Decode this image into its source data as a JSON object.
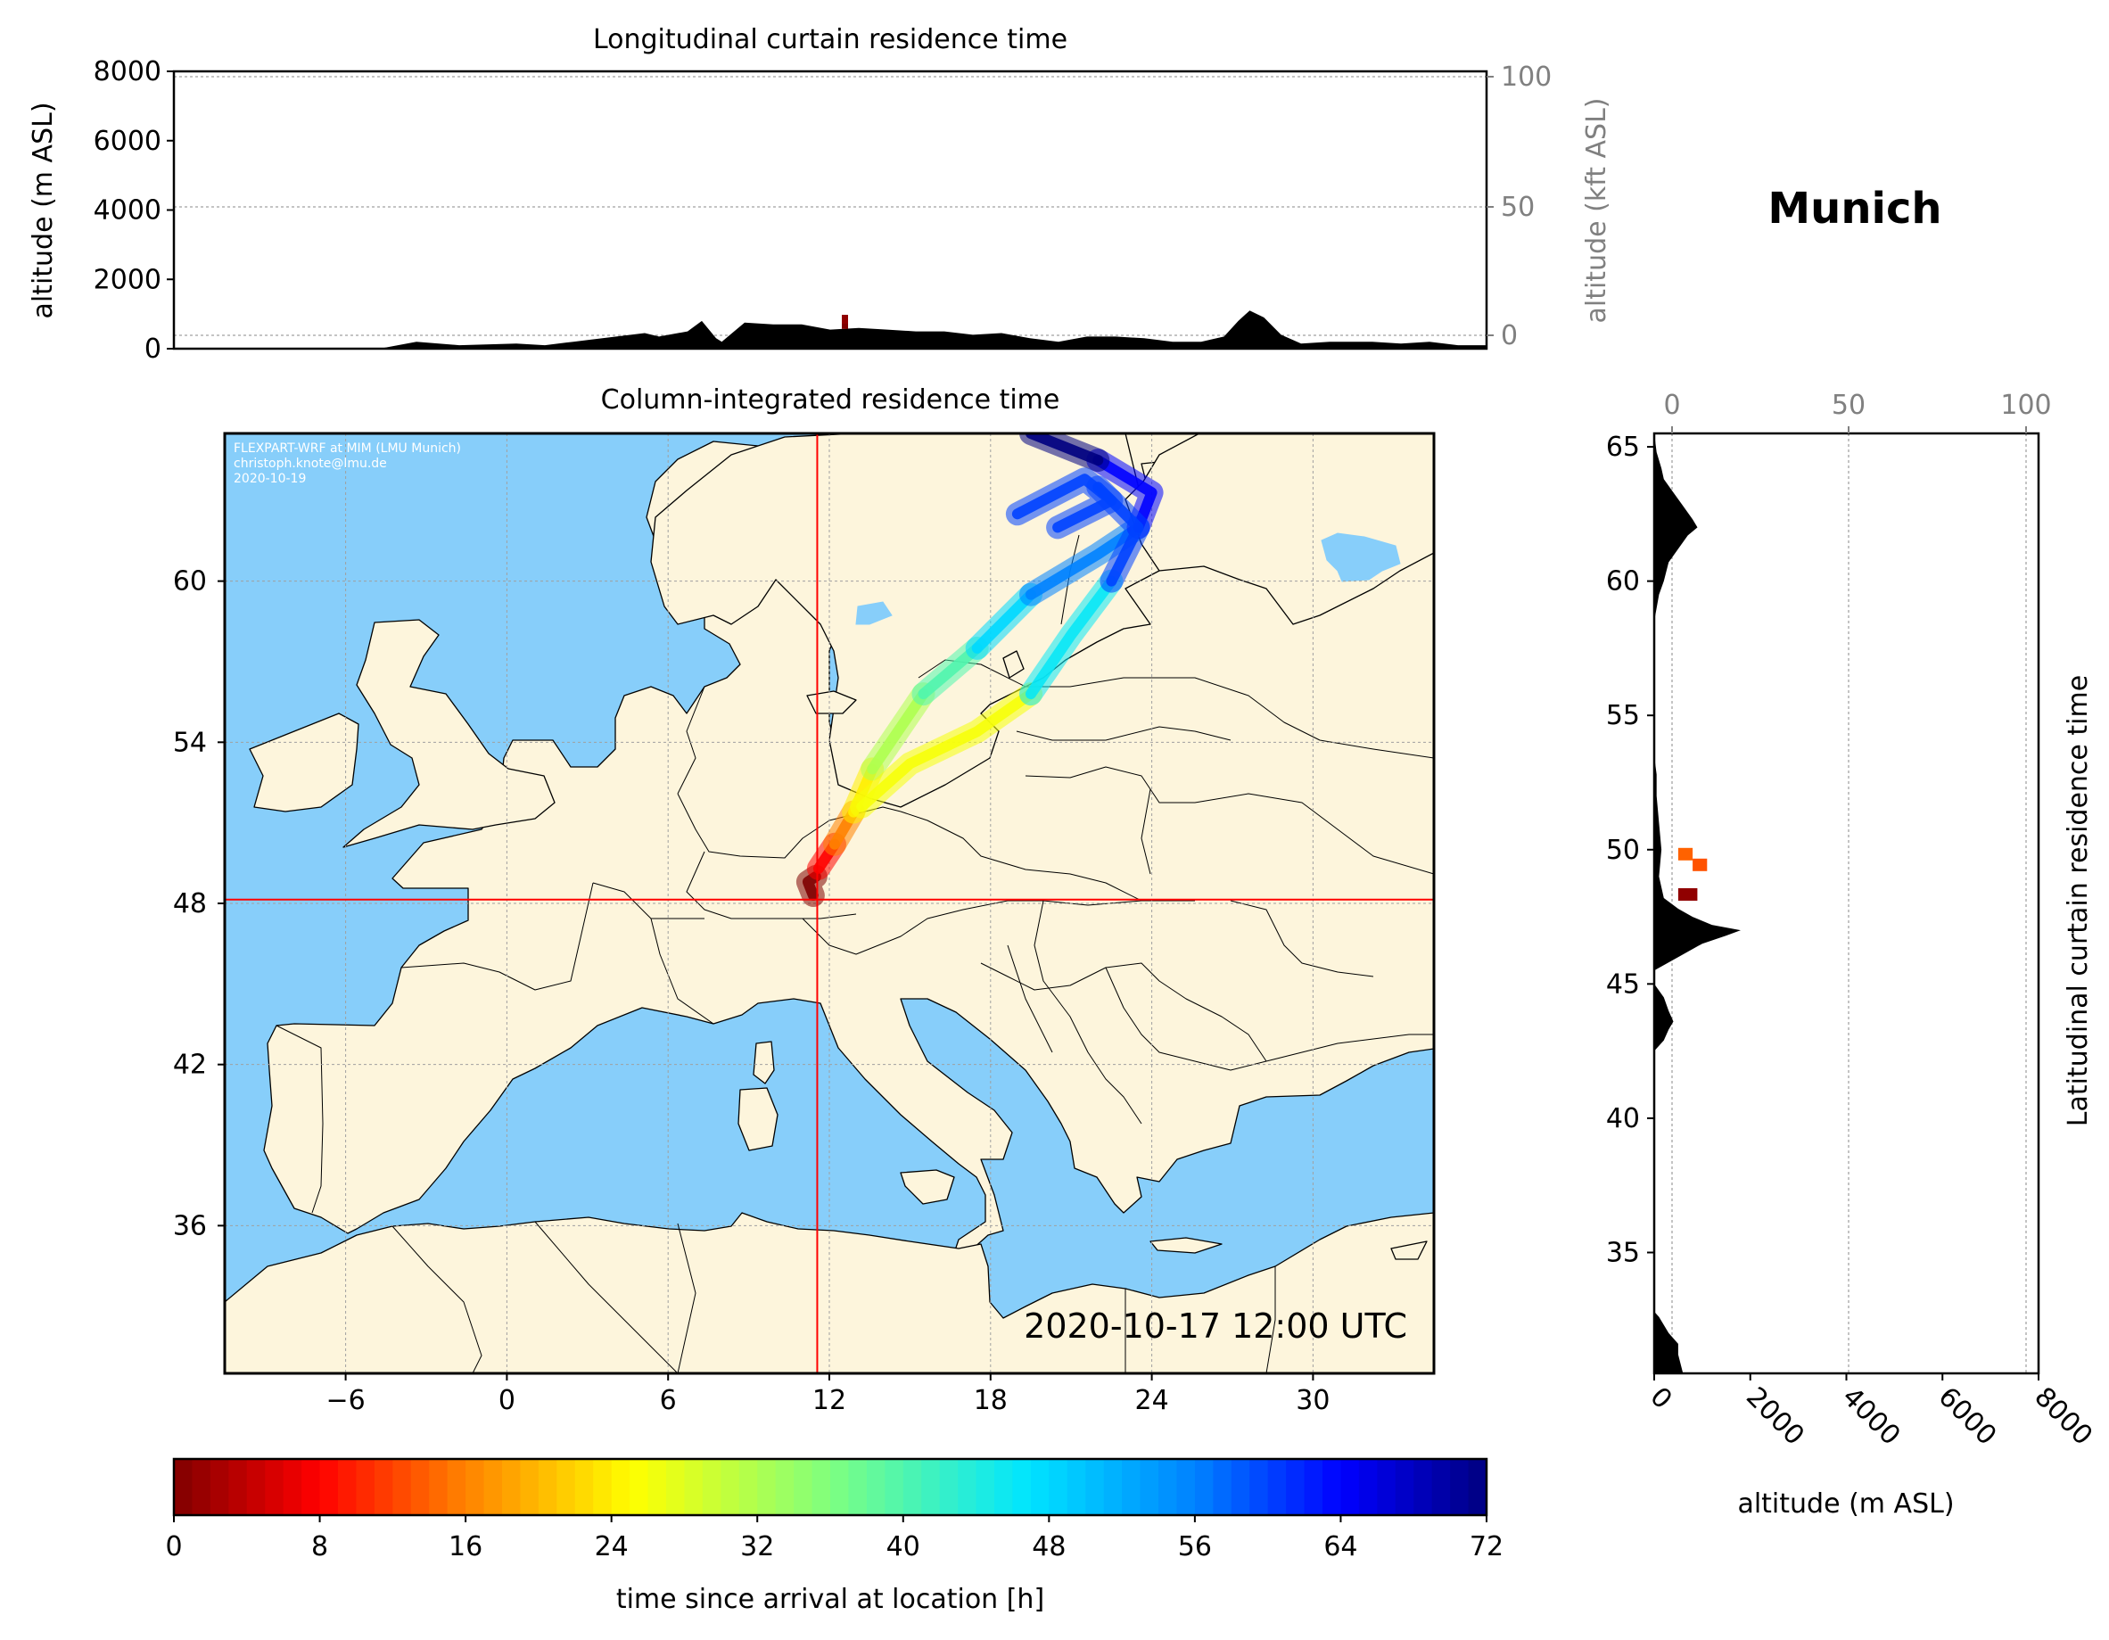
{
  "station": "Munich",
  "colors": {
    "sea": "#87cefa",
    "land": "#fdf5dc",
    "marker": "#ff0000",
    "terrain": "#000000",
    "right_axis_text": "#808080"
  },
  "chart_data": [
    {
      "id": "longitudinal",
      "type": "area",
      "title": "Longitudinal curtain residence time",
      "ylabel": "altitude (m ASL)",
      "ylabel_right": "altitude (kft ASL)",
      "ylim": [
        0,
        8000
      ],
      "yticks": [
        "0",
        "2000",
        "4000",
        "6000",
        "8000"
      ],
      "yticks_right": [
        "0",
        "50",
        "100"
      ],
      "xlim": [
        -12,
        34
      ],
      "terrain": {
        "x": [
          -12,
          -4.8,
          -3.5,
          -2,
          0,
          1,
          2,
          4.5,
          5,
          6,
          6.5,
          7,
          7.2,
          8,
          9,
          10,
          11,
          12,
          13,
          14,
          15,
          16,
          17,
          18,
          19,
          20,
          21,
          22,
          23,
          24,
          24.8,
          25.3,
          25.7,
          26.2,
          26.8,
          27.5,
          28.5,
          30,
          31,
          32,
          33,
          34
        ],
        "y": [
          0,
          0,
          200,
          100,
          150,
          100,
          200,
          450,
          350,
          500,
          800,
          300,
          200,
          750,
          700,
          700,
          550,
          600,
          550,
          500,
          500,
          400,
          450,
          300,
          200,
          350,
          350,
          300,
          200,
          200,
          350,
          800,
          1100,
          900,
          400,
          150,
          200,
          200,
          150,
          200,
          100,
          100
        ]
      },
      "residence": [
        {
          "x": 11.5,
          "y": 700,
          "hours": 0
        },
        {
          "x": 11.5,
          "y": 850,
          "hours": 1
        }
      ]
    },
    {
      "id": "column",
      "type": "heatmap",
      "title": "Column-integrated residence time",
      "xlim": [
        -10.5,
        34.5
      ],
      "ylim": [
        30.5,
        65.5
      ],
      "xticks": [
        "−6",
        "0",
        "6",
        "12",
        "18",
        "24",
        "30"
      ],
      "yticks": [
        "36",
        "42",
        "48",
        "54",
        "60"
      ],
      "crosshair": {
        "lon": 11.55,
        "lat": 48.14
      },
      "credit": [
        "FLEXPART-WRF at MIM (LMU Munich)",
        "christoph.knote@lmu.de",
        "2020-10-19"
      ],
      "timestamp": "2020-10-17 12:00 UTC",
      "plume": [
        {
          "hours": 0,
          "path": [
            [
              11.4,
              48.3
            ],
            [
              11.2,
              48.8
            ],
            [
              11.5,
              49.0
            ]
          ]
        },
        {
          "hours": 8,
          "path": [
            [
              11.6,
              49.3
            ],
            [
              12.2,
              50.2
            ]
          ]
        },
        {
          "hours": 16,
          "path": [
            [
              12.2,
              50.2
            ],
            [
              12.9,
              51.4
            ]
          ]
        },
        {
          "hours": 24,
          "path": [
            [
              12.9,
              51.4
            ],
            [
              13.6,
              53.0
            ]
          ]
        },
        {
          "hours": 32,
          "path": [
            [
              13.6,
              53.0
            ],
            [
              15.5,
              55.8
            ]
          ]
        },
        {
          "hours": 40,
          "path": [
            [
              15.5,
              55.8
            ],
            [
              17.5,
              57.5
            ]
          ]
        },
        {
          "hours": 48,
          "path": [
            [
              17.5,
              57.5
            ],
            [
              19.5,
              59.5
            ]
          ]
        },
        {
          "hours": 56,
          "path": [
            [
              19.5,
              59.5
            ],
            [
              22.0,
              61.0
            ],
            [
              23.5,
              62.0
            ]
          ]
        },
        {
          "hours": 64,
          "path": [
            [
              23.5,
              62.0
            ],
            [
              24.0,
              63.3
            ],
            [
              22.0,
              64.5
            ]
          ]
        },
        {
          "hours": 72,
          "path": [
            [
              22.0,
              64.5
            ],
            [
              19.5,
              65.5
            ]
          ]
        },
        {
          "hours": 26,
          "path": [
            [
              13.2,
              51.6
            ],
            [
              15.0,
              53.2
            ],
            [
              17.5,
              54.4
            ],
            [
              19.5,
              55.8
            ]
          ]
        },
        {
          "hours": 46,
          "path": [
            [
              19.5,
              55.8
            ],
            [
              21.0,
              58.0
            ],
            [
              22.5,
              60.0
            ]
          ]
        },
        {
          "hours": 60,
          "path": [
            [
              22.5,
              60.0
            ],
            [
              23.5,
              62.0
            ],
            [
              22.0,
              63.5
            ]
          ]
        },
        {
          "hours": 60,
          "path": [
            [
              19.0,
              62.5
            ],
            [
              21.5,
              63.8
            ],
            [
              22.5,
              63.0
            ],
            [
              20.5,
              62.0
            ]
          ]
        }
      ]
    },
    {
      "id": "latitudinal",
      "type": "area",
      "title": "Latitudinal curtain residence time",
      "xlabel": "altitude (m ASL)",
      "xlim": [
        0,
        8000
      ],
      "xticks": [
        "0",
        "2000",
        "4000",
        "6000",
        "8000"
      ],
      "xticks_top": [
        "0",
        "50",
        "100"
      ],
      "ylim": [
        30.5,
        65.5
      ],
      "yticks": [
        "35",
        "40",
        "45",
        "50",
        "55",
        "60",
        "65"
      ],
      "terrain": {
        "lat": [
          30.5,
          31.2,
          31.6,
          32.0,
          32.6,
          32.8,
          42.5,
          42.9,
          43.3,
          43.6,
          44.0,
          44.5,
          45.0,
          45.5,
          46.0,
          46.5,
          46.8,
          47.0,
          47.2,
          47.5,
          47.8,
          48.2,
          49.0,
          50.0,
          51.0,
          52.0,
          52.8,
          53.5,
          58.5,
          59.5,
          60.0,
          60.7,
          61.2,
          61.7,
          62.0,
          62.3,
          62.8,
          63.3,
          63.8,
          64.2,
          64.8,
          65.5
        ],
        "alt": [
          600,
          500,
          500,
          300,
          100,
          0,
          0,
          200,
          300,
          400,
          300,
          200,
          0,
          0,
          500,
          1000,
          1500,
          1800,
          1200,
          800,
          500,
          200,
          100,
          150,
          100,
          50,
          50,
          0,
          0,
          100,
          200,
          300,
          500,
          700,
          900,
          800,
          600,
          400,
          200,
          150,
          50,
          0
        ]
      },
      "residence": [
        {
          "lat": 49.8,
          "alt_from": 500,
          "alt_to": 800,
          "hours": 14
        },
        {
          "lat": 49.4,
          "alt_from": 800,
          "alt_to": 1100,
          "hours": 13
        },
        {
          "lat": 48.3,
          "alt_from": 500,
          "alt_to": 900,
          "hours": 1
        }
      ]
    },
    {
      "id": "colorbar",
      "type": "colorbar",
      "xlabel": "time since arrival at location [h]",
      "range": [
        0,
        72
      ],
      "ticks": [
        "0",
        "8",
        "16",
        "24",
        "32",
        "40",
        "48",
        "56",
        "64",
        "72"
      ]
    }
  ]
}
